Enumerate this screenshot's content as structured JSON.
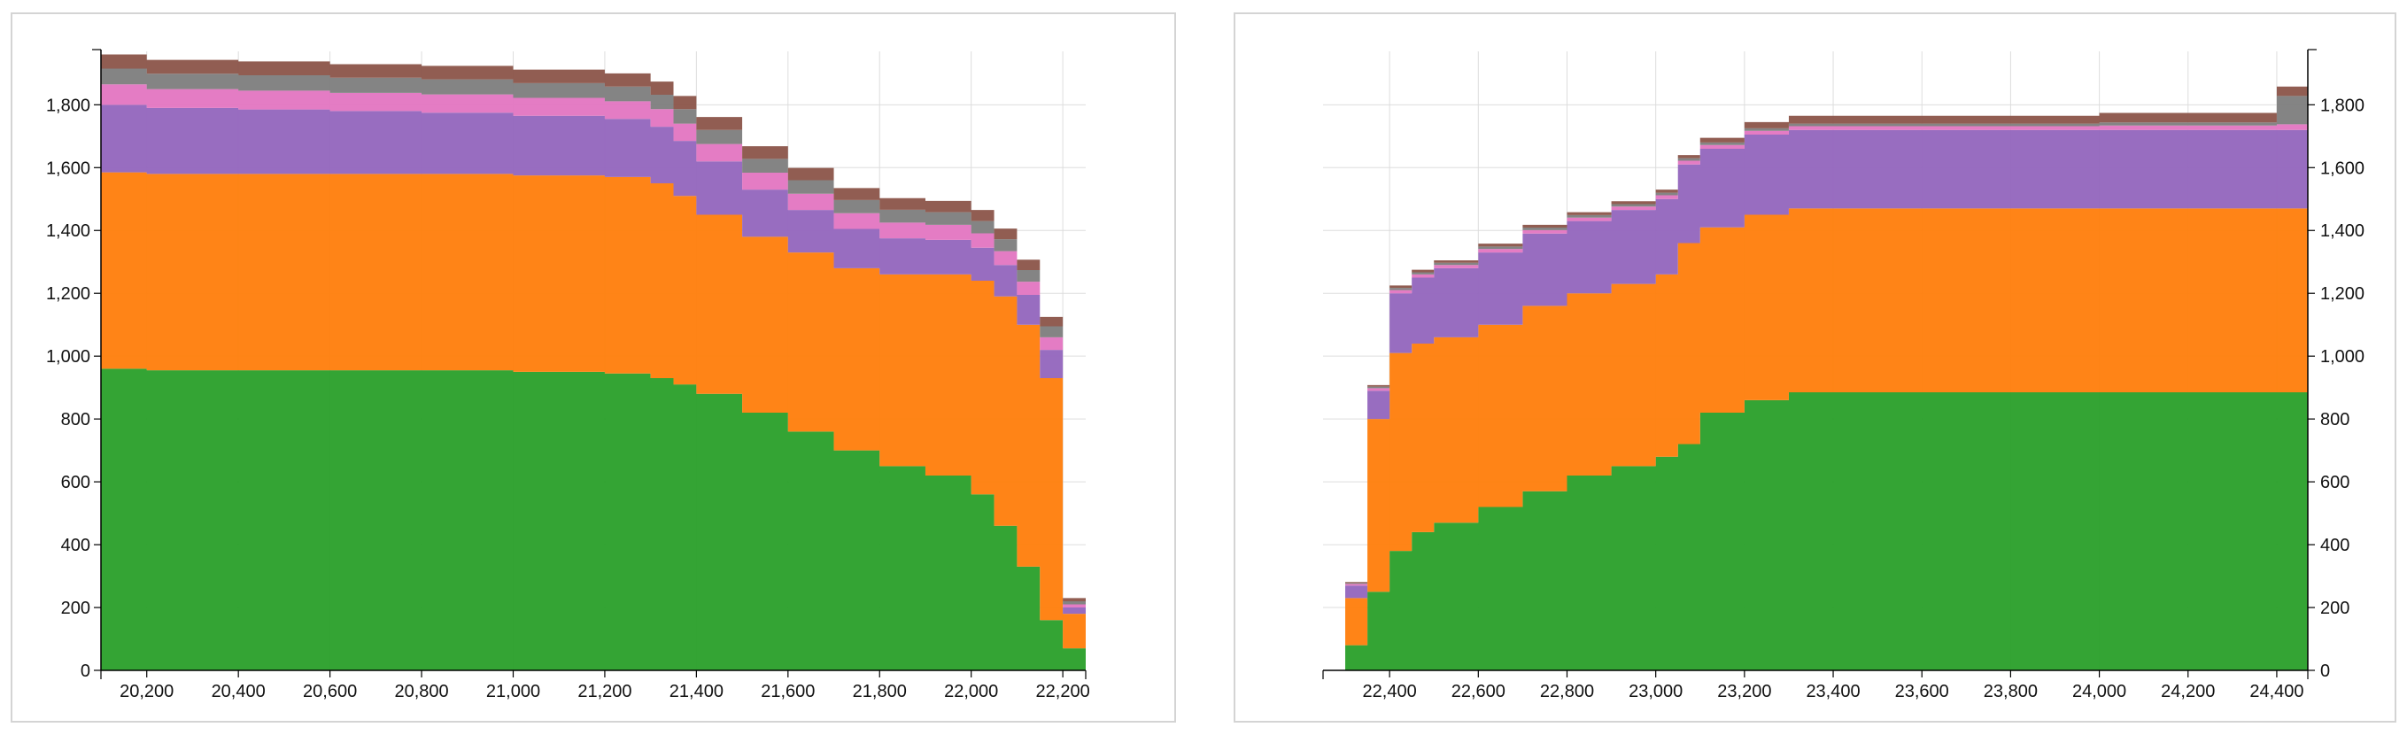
{
  "chart_data": [
    {
      "type": "area",
      "stacked": true,
      "step": true,
      "xlim": [
        20100,
        22250
      ],
      "ylim": [
        0,
        1970
      ],
      "x_ticks": [
        20200,
        20400,
        20600,
        20800,
        21000,
        21200,
        21400,
        21600,
        21800,
        22000,
        22200
      ],
      "x_tick_labels": [
        "20,200",
        "20,400",
        "20,600",
        "20,800",
        "21,000",
        "21,200",
        "21,400",
        "21,600",
        "21,800",
        "22,000",
        "22,200"
      ],
      "y_ticks": [
        0,
        200,
        400,
        600,
        800,
        1000,
        1200,
        1400,
        1600,
        1800
      ],
      "y_tick_labels": [
        "0",
        "200",
        "400",
        "600",
        "800",
        "1,000",
        "1,200",
        "1,400",
        "1,600",
        "1,800"
      ],
      "y_axis_side": "left",
      "grid": true,
      "x": [
        20100,
        20200,
        20400,
        20600,
        20800,
        21000,
        21200,
        21300,
        21350,
        21400,
        21500,
        21600,
        21700,
        21800,
        21900,
        22000,
        22050,
        22100,
        22150,
        22200,
        22250
      ],
      "series": [
        {
          "color": "#2ca02c",
          "values": [
            960,
            955,
            955,
            955,
            955,
            950,
            945,
            930,
            910,
            880,
            820,
            760,
            700,
            650,
            620,
            560,
            460,
            330,
            160,
            70,
            20
          ]
        },
        {
          "color": "#ff7f0e",
          "values": [
            625,
            625,
            625,
            625,
            625,
            625,
            625,
            620,
            600,
            570,
            560,
            570,
            580,
            610,
            640,
            680,
            730,
            770,
            770,
            110,
            20
          ]
        },
        {
          "color": "#9467bd",
          "values": [
            215,
            210,
            205,
            200,
            195,
            190,
            185,
            180,
            175,
            170,
            150,
            135,
            125,
            115,
            110,
            105,
            100,
            95,
            90,
            20,
            10
          ]
        },
        {
          "color": "#e377c2",
          "values": [
            65,
            60,
            60,
            58,
            58,
            57,
            56,
            56,
            55,
            55,
            54,
            52,
            50,
            50,
            48,
            46,
            44,
            42,
            40,
            10,
            5
          ]
        },
        {
          "color": "#7f7f7f",
          "values": [
            50,
            49,
            49,
            48,
            48,
            47,
            47,
            46,
            46,
            45,
            44,
            43,
            42,
            41,
            40,
            39,
            38,
            37,
            35,
            10,
            5
          ]
        },
        {
          "color": "#8c564b",
          "values": [
            45,
            44,
            44,
            43,
            43,
            43,
            42,
            42,
            42,
            41,
            40,
            39,
            38,
            37,
            36,
            35,
            34,
            33,
            30,
            10,
            5
          ]
        }
      ]
    },
    {
      "type": "area",
      "stacked": true,
      "step": true,
      "xlim": [
        22250,
        24470
      ],
      "ylim": [
        0,
        1970
      ],
      "x_ticks": [
        22400,
        22600,
        22800,
        23000,
        23200,
        23400,
        23600,
        23800,
        24000,
        24200,
        24400
      ],
      "x_tick_labels": [
        "22,400",
        "22,600",
        "22,800",
        "23,000",
        "23,200",
        "23,400",
        "23,600",
        "23,800",
        "24,000",
        "24,200",
        "24,400"
      ],
      "y_ticks": [
        0,
        200,
        400,
        600,
        800,
        1000,
        1200,
        1400,
        1600,
        1800
      ],
      "y_tick_labels": [
        "0",
        "200",
        "400",
        "600",
        "800",
        "1,000",
        "1,200",
        "1,400",
        "1,600",
        "1,800"
      ],
      "y_axis_side": "right",
      "grid": true,
      "x": [
        22250,
        22300,
        22350,
        22400,
        22450,
        22500,
        22600,
        22700,
        22800,
        22900,
        23000,
        23050,
        23100,
        23200,
        23300,
        23500,
        23800,
        24000,
        24100,
        24300,
        24400,
        24470
      ],
      "series": [
        {
          "color": "#2ca02c",
          "values": [
            0,
            80,
            250,
            380,
            440,
            470,
            520,
            570,
            620,
            650,
            680,
            720,
            820,
            860,
            885,
            885,
            885,
            885,
            885,
            885,
            885,
            885
          ]
        },
        {
          "color": "#ff7f0e",
          "values": [
            0,
            150,
            550,
            630,
            600,
            590,
            580,
            590,
            580,
            580,
            580,
            640,
            590,
            590,
            585,
            585,
            585,
            585,
            585,
            585,
            585,
            585
          ]
        },
        {
          "color": "#9467bd",
          "values": [
            0,
            40,
            90,
            190,
            210,
            220,
            230,
            230,
            230,
            235,
            240,
            250,
            250,
            255,
            250,
            250,
            250,
            250,
            250,
            250,
            250,
            250
          ]
        },
        {
          "color": "#e377c2",
          "values": [
            0,
            5,
            8,
            10,
            10,
            10,
            11,
            11,
            11,
            11,
            12,
            12,
            12,
            12,
            12,
            12,
            12,
            14,
            14,
            14,
            18,
            18
          ]
        },
        {
          "color": "#7f7f7f",
          "values": [
            0,
            3,
            5,
            7,
            7,
            7,
            8,
            8,
            8,
            8,
            8,
            8,
            8,
            8,
            8,
            8,
            8,
            10,
            10,
            10,
            90,
            90
          ]
        },
        {
          "color": "#8c564b",
          "values": [
            0,
            3,
            5,
            8,
            8,
            8,
            9,
            9,
            9,
            9,
            10,
            10,
            15,
            20,
            25,
            25,
            25,
            30,
            30,
            30,
            30,
            30
          ]
        }
      ]
    }
  ]
}
